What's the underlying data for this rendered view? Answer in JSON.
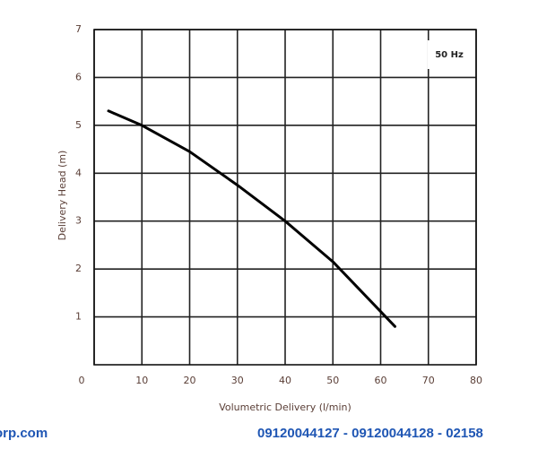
{
  "chart_data": {
    "type": "line",
    "x_label": "Volumetric Delivery (l/min)",
    "y_label": "Delivery Head (m)",
    "annotation": "50 Hz",
    "x": [
      3,
      10,
      20,
      30,
      40,
      50,
      63
    ],
    "series": [
      {
        "color": "#000000",
        "values": [
          5.3,
          5.0,
          4.45,
          3.75,
          3.0,
          2.15,
          0.8
        ]
      }
    ],
    "xlim": [
      0,
      80
    ],
    "xticks": [
      0,
      10,
      20,
      30,
      40,
      50,
      60,
      70,
      80
    ],
    "ylim": [
      0,
      7
    ],
    "yticks": [
      1,
      2,
      3,
      4,
      5,
      6,
      7
    ],
    "grid": true
  },
  "footer": {
    "left": "orp.com",
    "right": "09120044127 - 09120044128 - 02158"
  }
}
